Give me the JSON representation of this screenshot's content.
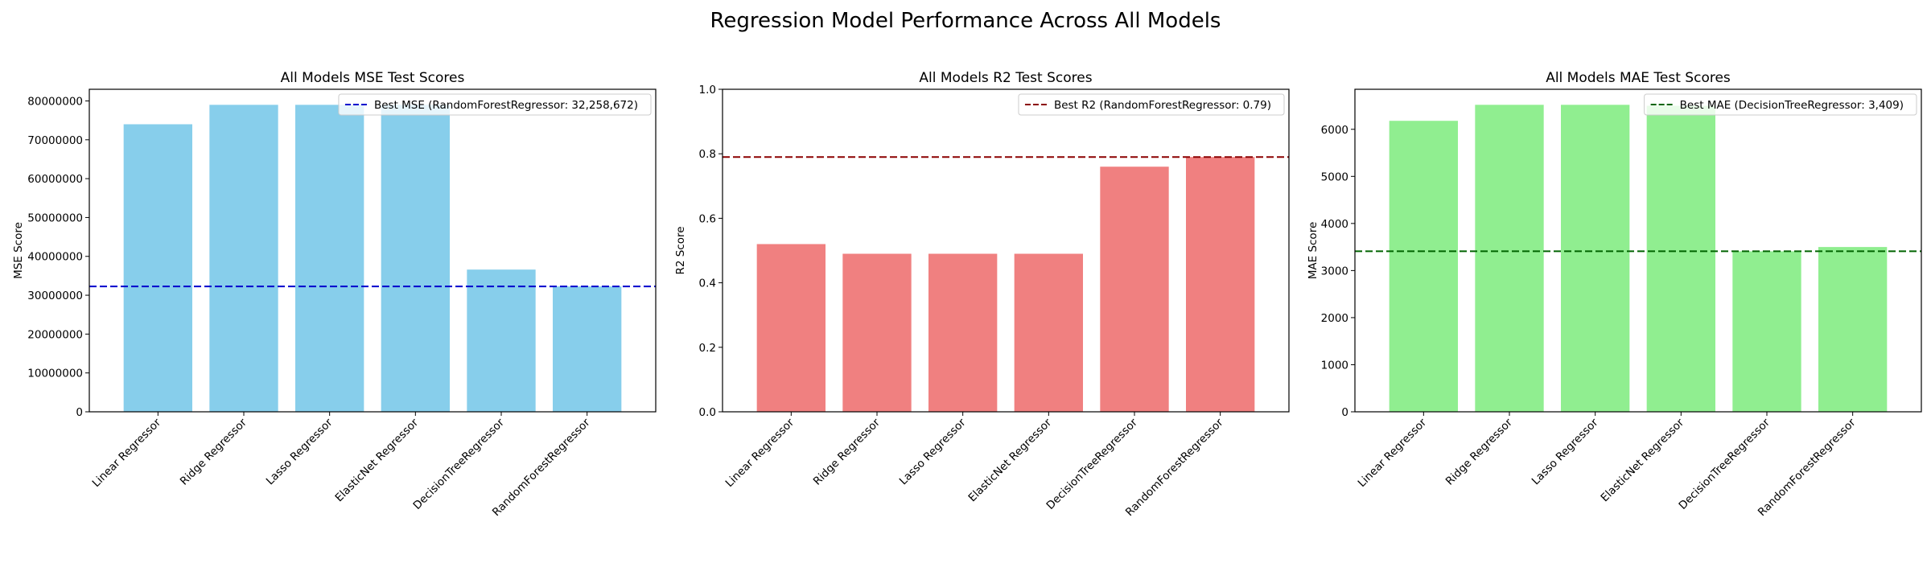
{
  "figure": {
    "suptitle": "Regression Model Performance Across All Models"
  },
  "chart_data": [
    {
      "type": "bar",
      "title": "All Models MSE Test Scores",
      "xlabel": "",
      "ylabel": "MSE Score",
      "categories": [
        "Linear Regressor",
        "Ridge Regressor",
        "Lasso Regressor",
        "ElasticNet Regressor",
        "DecisionTreeRegressor",
        "RandomForestRegressor"
      ],
      "values": [
        74000000,
        79000000,
        79000000,
        79000000,
        36600000,
        32258672
      ],
      "ylim": [
        0,
        83000000
      ],
      "yticks": [
        0,
        10000000,
        20000000,
        30000000,
        40000000,
        50000000,
        60000000,
        70000000,
        80000000
      ],
      "ytick_labels": [
        "0",
        "10000000",
        "20000000",
        "30000000",
        "40000000",
        "50000000",
        "60000000",
        "70000000",
        "80000000"
      ],
      "bar_color": "#87CEEB",
      "reference_line": {
        "value": 32258672,
        "color": "#0000CD",
        "label": "Best MSE (RandomForestRegressor: 32,258,672)"
      },
      "legend_position": "upper right",
      "grid": false
    },
    {
      "type": "bar",
      "title": "All Models R2 Test Scores",
      "xlabel": "",
      "ylabel": "R2 Score",
      "categories": [
        "Linear Regressor",
        "Ridge Regressor",
        "Lasso Regressor",
        "ElasticNet Regressor",
        "DecisionTreeRegressor",
        "RandomForestRegressor"
      ],
      "values": [
        0.52,
        0.49,
        0.49,
        0.49,
        0.76,
        0.79
      ],
      "ylim": [
        0,
        1.0
      ],
      "yticks": [
        0,
        0.2,
        0.4,
        0.6,
        0.8,
        1.0
      ],
      "ytick_labels": [
        "0.0",
        "0.2",
        "0.4",
        "0.6",
        "0.8",
        "1.0"
      ],
      "bar_color": "#F08080",
      "reference_line": {
        "value": 0.79,
        "color": "#8B0000",
        "label": "Best R2 (RandomForestRegressor: 0.79)"
      },
      "legend_position": "upper right",
      "grid": false
    },
    {
      "type": "bar",
      "title": "All Models MAE Test Scores",
      "xlabel": "",
      "ylabel": "MAE Score",
      "categories": [
        "Linear Regressor",
        "Ridge Regressor",
        "Lasso Regressor",
        "ElasticNet Regressor",
        "DecisionTreeRegressor",
        "RandomForestRegressor"
      ],
      "values": [
        6180,
        6520,
        6520,
        6500,
        3409,
        3500
      ],
      "ylim": [
        0,
        6850
      ],
      "yticks": [
        0,
        1000,
        2000,
        3000,
        4000,
        5000,
        6000
      ],
      "ytick_labels": [
        "0",
        "1000",
        "2000",
        "3000",
        "4000",
        "5000",
        "6000"
      ],
      "bar_color": "#90EE90",
      "reference_line": {
        "value": 3409,
        "color": "#006400",
        "label": "Best MAE (DecisionTreeRegressor: 3,409)"
      },
      "legend_position": "upper right",
      "grid": false
    }
  ]
}
